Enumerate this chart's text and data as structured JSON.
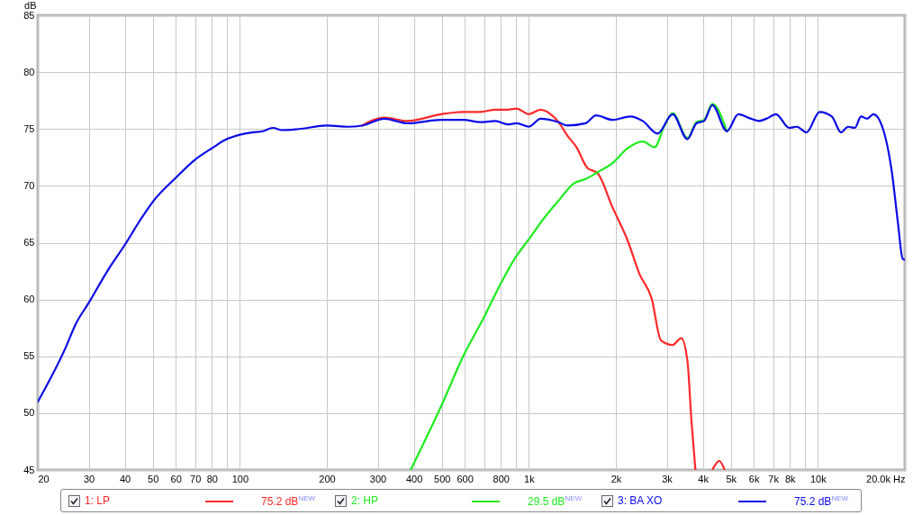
{
  "chart_data": {
    "type": "line",
    "ylabel": "dB",
    "xlim": [
      20,
      20000
    ],
    "ylim": [
      45,
      85
    ],
    "xticks": [
      20,
      30,
      40,
      50,
      60,
      70,
      80,
      {
        "value": 90,
        "label": null
      },
      100,
      200,
      300,
      400,
      500,
      600,
      {
        "value": 700,
        "label": null
      },
      800,
      {
        "value": 900,
        "label": null
      },
      {
        "value": 1000,
        "label": "1k"
      },
      {
        "value": 2000,
        "label": "2k"
      },
      {
        "value": 3000,
        "label": "3k"
      },
      {
        "value": 4000,
        "label": "4k"
      },
      {
        "value": 5000,
        "label": "5k"
      },
      {
        "value": 6000,
        "label": "6k"
      },
      {
        "value": 7000,
        "label": "7k"
      },
      {
        "value": 8000,
        "label": "8k"
      },
      {
        "value": 9000,
        "label": null
      },
      {
        "value": 10000,
        "label": "10k"
      },
      {
        "value": 20000,
        "label": "20.0k Hz"
      }
    ],
    "yticks": [
      45,
      50,
      55,
      60,
      65,
      70,
      75,
      80,
      85
    ],
    "log": "x",
    "grid": true,
    "legend": "bottom",
    "line_style": "solid",
    "marker": "none",
    "series": [
      {
        "name": "1: LP",
        "color": "#ff2828",
        "x": [
          265,
          316,
          380,
          497,
          595,
          678,
          766,
          845,
          907,
          1000,
          1098,
          1267,
          1361,
          1461,
          1591,
          1730,
          1948,
          2196,
          2418,
          2659,
          2865,
          3144,
          3370,
          3537,
          3653,
          3770,
          4000,
          4314,
          4561,
          4755
        ],
        "values": [
          75.3,
          76.0,
          75.7,
          76.3,
          76.5,
          76.5,
          76.7,
          76.7,
          76.8,
          76.3,
          76.7,
          75.6,
          74.4,
          73.4,
          71.6,
          71.1,
          68.1,
          65.2,
          62.2,
          60.1,
          56.4,
          56.0,
          56.6,
          54.6,
          49.3,
          45,
          null,
          45,
          45.8,
          45
        ]
      },
      {
        "name": "2: HP",
        "color": "#1eeb1e",
        "x": [
          390,
          497,
          595,
          695,
          803,
          894,
          1000,
          1124,
          1267,
          1428,
          1571,
          1730,
          1948,
          2196,
          2477,
          2724,
          2935,
          3144,
          3537,
          3801,
          4039,
          4314,
          4843
        ],
        "values": [
          45,
          50.6,
          55.1,
          58.3,
          61.5,
          63.6,
          65.3,
          67.1,
          68.7,
          70.2,
          70.6,
          71.2,
          72.0,
          73.3,
          73.9,
          73.4,
          75.2,
          76.4,
          74.2,
          75.6,
          75.8,
          77.2,
          74.8
        ]
      },
      {
        "name": "3: BA XO",
        "color": "#0a0ae6",
        "x": [
          20,
          25,
          27,
          30,
          35,
          40,
          45,
          50,
          60,
          70,
          80,
          90,
          100,
          110,
          120,
          130,
          140,
          160,
          200,
          237,
          265,
          316,
          380,
          497,
          595,
          678,
          766,
          845,
          907,
          1000,
          1098,
          1267,
          1361,
          1571,
          1709,
          1948,
          2249,
          2477,
          2790,
          3144,
          3537,
          3801,
          4039,
          4314,
          4843,
          5303,
          5871,
          6241,
          6630,
          7164,
          7951,
          8451,
          9135,
          10135,
          11174,
          12023,
          12715,
          13428,
          14100,
          14817,
          15564,
          16750,
          18030,
          18930,
          19640,
          20000
        ],
        "values": [
          51.0,
          55.8,
          57.8,
          59.7,
          62.6,
          64.8,
          66.9,
          68.6,
          70.7,
          72.3,
          73.3,
          74.1,
          74.5,
          74.7,
          74.8,
          75.1,
          74.9,
          75.0,
          75.3,
          75.2,
          75.3,
          75.9,
          75.5,
          75.8,
          75.8,
          75.6,
          75.7,
          75.4,
          75.5,
          75.2,
          75.9,
          75.6,
          75.3,
          75.5,
          76.2,
          75.8,
          76.1,
          75.7,
          74.6,
          76.3,
          74.1,
          75.5,
          75.7,
          77.1,
          74.8,
          76.3,
          75.9,
          75.7,
          75.9,
          76.3,
          75.1,
          75.2,
          74.7,
          76.5,
          76.1,
          74.7,
          75.2,
          75.1,
          76.1,
          75.9,
          76.3,
          75.1,
          71.2,
          66.7,
          63.6,
          63.5
        ]
      }
    ],
    "annotations": [
      "75.2 dB$^{NEW}$",
      "29.5 dB$^{NEW}$",
      "75.2 dB$^{NEW}$"
    ]
  }
}
